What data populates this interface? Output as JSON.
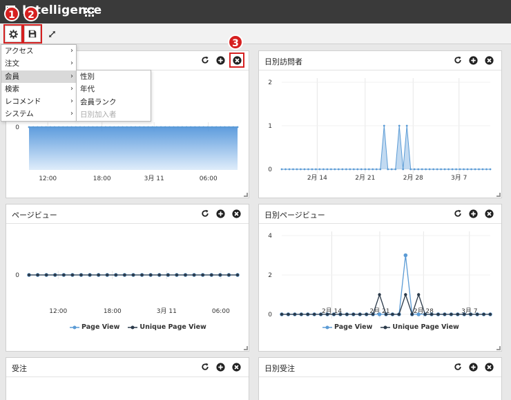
{
  "app": {
    "title": "Intelligence"
  },
  "toolbar": {
    "badge1": "1",
    "badge2": "2"
  },
  "badge3": "3",
  "menu": {
    "items": [
      {
        "label": "アクセス",
        "has_submenu": true
      },
      {
        "label": "注文",
        "has_submenu": true
      },
      {
        "label": "会員",
        "has_submenu": true,
        "active": true
      },
      {
        "label": "検索",
        "has_submenu": true
      },
      {
        "label": "レコメンド",
        "has_submenu": true
      },
      {
        "label": "システム",
        "has_submenu": true
      }
    ],
    "submenu": [
      {
        "label": "性別",
        "disabled": false
      },
      {
        "label": "年代",
        "disabled": false
      },
      {
        "label": "会員ランク",
        "disabled": false
      },
      {
        "label": "日別加入者",
        "disabled": true
      }
    ]
  },
  "panels": {
    "p1": {
      "title": ""
    },
    "p2": {
      "title": "日別訪問者"
    },
    "p3": {
      "title": "ページビュー"
    },
    "p4": {
      "title": "日別ページビュー"
    },
    "p5": {
      "title": "受注"
    },
    "p6": {
      "title": "日別受注"
    }
  },
  "colors": {
    "accent": "#d62020",
    "series_blue": "#5b9bd5",
    "series_dark": "#2b3a4a"
  },
  "chart_data": [
    {
      "type": "area",
      "x_ticks": [
        "12:00",
        "18:00",
        "3月 11",
        "06:00"
      ],
      "y_ticks": [
        "0"
      ],
      "series": [
        {
          "values": [
            0,
            0,
            0,
            0,
            0,
            0,
            0,
            0,
            0,
            0,
            0,
            0,
            0,
            0,
            0,
            0,
            0,
            0,
            0,
            0,
            0,
            0,
            0,
            0,
            0,
            0,
            0,
            0,
            0,
            0,
            0,
            0,
            0,
            0,
            0,
            0,
            0,
            0,
            0,
            0,
            0,
            0,
            0,
            0,
            0,
            0,
            0,
            0,
            0,
            0
          ]
        }
      ]
    },
    {
      "type": "area",
      "x_ticks": [
        "2月 14",
        "2月 21",
        "2月 28",
        "3月 7"
      ],
      "y_ticks": [
        "0",
        "1",
        "2"
      ],
      "ylim": [
        0,
        2
      ],
      "series": [
        {
          "values": [
            0,
            0,
            0,
            0,
            0,
            0,
            0,
            0,
            0,
            0,
            0,
            0,
            0,
            0,
            0,
            0,
            0,
            0,
            0,
            0,
            0,
            0,
            0,
            0,
            0,
            0,
            0,
            1,
            0,
            0,
            0,
            1,
            0,
            1,
            0,
            0,
            0,
            0,
            0,
            0,
            0,
            0,
            0,
            0,
            0,
            0,
            0,
            0,
            0,
            0,
            0,
            0,
            0,
            0,
            0,
            0
          ]
        }
      ]
    },
    {
      "type": "line",
      "x_ticks": [
        "12:00",
        "18:00",
        "3月 11",
        "06:00"
      ],
      "y_ticks": [
        "0"
      ],
      "series": [
        {
          "name": "Page View",
          "values": [
            0,
            0,
            0,
            0,
            0,
            0,
            0,
            0,
            0,
            0,
            0,
            0,
            0,
            0,
            0,
            0,
            0,
            0,
            0,
            0,
            0,
            0,
            0,
            0,
            0
          ]
        },
        {
          "name": "Unique Page View",
          "values": [
            0,
            0,
            0,
            0,
            0,
            0,
            0,
            0,
            0,
            0,
            0,
            0,
            0,
            0,
            0,
            0,
            0,
            0,
            0,
            0,
            0,
            0,
            0,
            0,
            0
          ]
        }
      ]
    },
    {
      "type": "line",
      "x_ticks": [
        "2月 14",
        "2月 21",
        "2月 28",
        "3月 7"
      ],
      "y_ticks": [
        "0",
        "2",
        "4"
      ],
      "ylim": [
        0,
        4
      ],
      "series": [
        {
          "name": "Page View",
          "values": [
            0,
            0,
            0,
            0,
            0,
            0,
            0,
            0,
            0,
            0,
            0,
            0,
            0,
            0,
            0,
            0,
            0,
            0,
            0,
            3,
            0,
            0,
            0,
            0,
            0,
            0,
            0,
            0,
            0,
            0,
            0,
            0,
            0
          ]
        },
        {
          "name": "Unique Page View",
          "values": [
            0,
            0,
            0,
            0,
            0,
            0,
            0,
            0,
            0,
            0,
            0,
            0,
            0,
            0,
            0,
            1,
            0,
            0,
            0,
            1,
            0,
            1,
            0,
            0,
            0,
            0,
            0,
            0,
            0,
            0,
            0,
            0,
            0
          ]
        }
      ]
    }
  ]
}
